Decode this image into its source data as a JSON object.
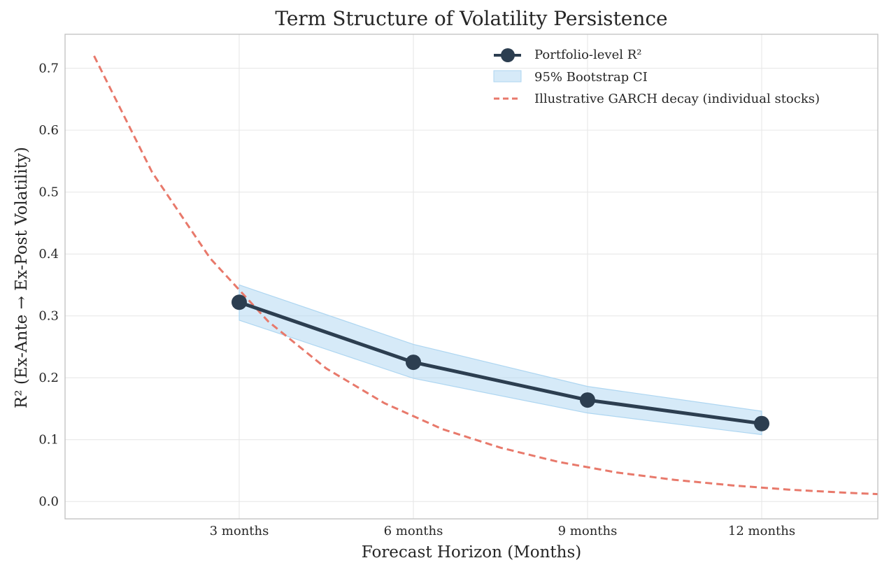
{
  "chart_data": {
    "type": "line",
    "title": "Term Structure of Volatility Persistence",
    "xlabel": "Forecast Horizon (Months)",
    "ylabel": "R² (Ex-Ante → Ex-Post Volatility)",
    "x_ticks": [
      {
        "value": 3,
        "label": "3 months"
      },
      {
        "value": 6,
        "label": "6 months"
      },
      {
        "value": 9,
        "label": "9 months"
      },
      {
        "value": 12,
        "label": "12 months"
      }
    ],
    "y_ticks": [
      {
        "value": 0.0,
        "label": "0.0"
      },
      {
        "value": 0.1,
        "label": "0.1"
      },
      {
        "value": 0.2,
        "label": "0.2"
      },
      {
        "value": 0.3,
        "label": "0.3"
      },
      {
        "value": 0.4,
        "label": "0.4"
      },
      {
        "value": 0.5,
        "label": "0.5"
      },
      {
        "value": 0.6,
        "label": "0.6"
      },
      {
        "value": 0.7,
        "label": "0.7"
      }
    ],
    "xlim": [
      0.0,
      14.0
    ],
    "ylim": [
      -0.028,
      0.755
    ],
    "grid": true,
    "legend_position": "top-right",
    "series": [
      {
        "name": "Portfolio-level R²",
        "kind": "line-markers",
        "color": "#2c3e50",
        "x": [
          3,
          6,
          9,
          12
        ],
        "y": [
          0.322,
          0.225,
          0.164,
          0.126
        ]
      },
      {
        "name": "95% Bootstrap CI",
        "kind": "band",
        "color": "#aed6f1",
        "x": [
          3,
          6,
          9,
          12
        ],
        "lower": [
          0.293,
          0.199,
          0.143,
          0.108
        ],
        "upper": [
          0.35,
          0.254,
          0.186,
          0.146
        ]
      },
      {
        "name": "Illustrative GARCH decay (individual stocks)",
        "kind": "dashed-line",
        "color": "#e8796b",
        "x": [
          0.5,
          1.5,
          2.5,
          3.5,
          4.5,
          5.5,
          6.5,
          7.5,
          8.5,
          9.5,
          10.5,
          11.5,
          12.5,
          13.5,
          14.0
        ],
        "y": [
          0.72,
          0.532,
          0.393,
          0.291,
          0.215,
          0.159,
          0.117,
          0.087,
          0.064,
          0.047,
          0.035,
          0.026,
          0.019,
          0.014,
          0.012
        ]
      }
    ]
  }
}
